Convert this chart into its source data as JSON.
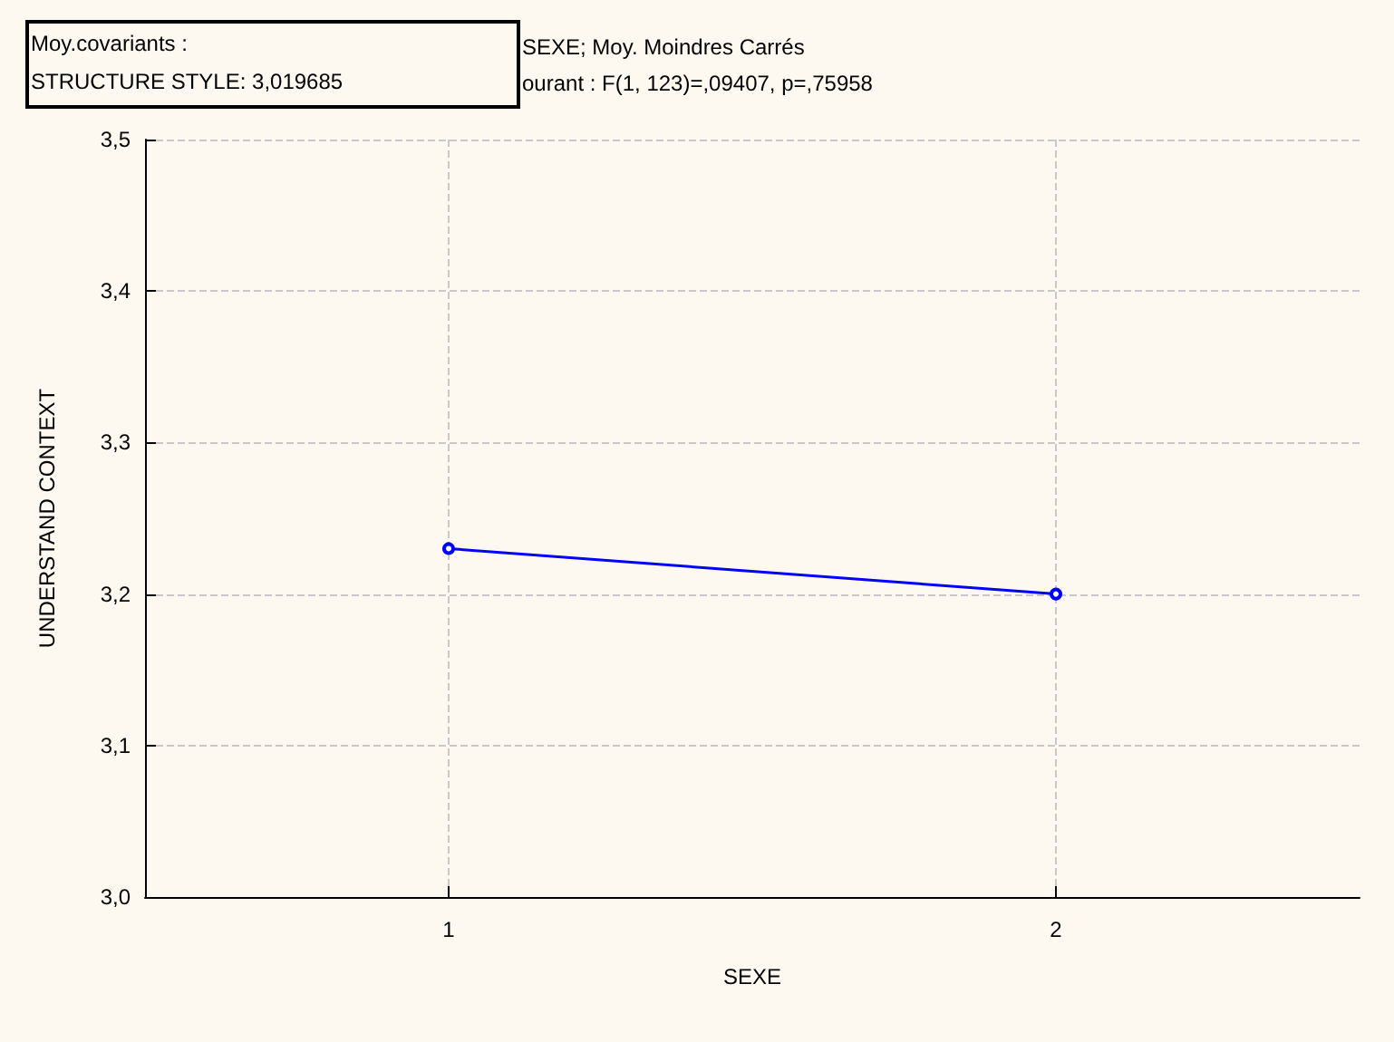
{
  "chart_data": {
    "type": "line",
    "title": "SEXE; Moy. Moindres Carrés",
    "subtitle": "ourant : F(1, 123)=,09407, p=,75958",
    "annotations": [
      "Moy.covariants :",
      "STRUCTURE STYLE: 3,019685"
    ],
    "xlabel": "SEXE",
    "ylabel": "UNDERSTAND CONTEXT",
    "x": [
      1,
      2
    ],
    "series": [
      {
        "color": "#0000ff",
        "values": [
          3.23,
          3.2
        ]
      }
    ],
    "xlim": [
      0.5,
      2.5
    ],
    "xticks": [
      1,
      2
    ],
    "ylim": [
      3.0,
      3.5
    ],
    "yticks": [
      {
        "value": 3.0,
        "label": "3,0"
      },
      {
        "value": 3.1,
        "label": "3,1"
      },
      {
        "value": 3.2,
        "label": "3,2"
      },
      {
        "value": 3.3,
        "label": "3,3"
      },
      {
        "value": 3.4,
        "label": "3,4"
      },
      {
        "value": 3.5,
        "label": "3,5"
      }
    ],
    "grid": true,
    "marker": "circle",
    "line_style": "solid"
  }
}
